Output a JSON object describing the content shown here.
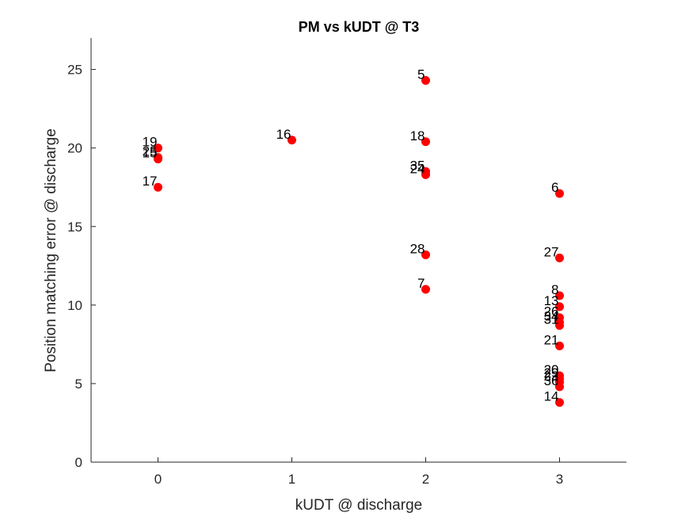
{
  "chart_data": {
    "type": "scatter",
    "title": "PM vs kUDT @ T3",
    "xlabel": "kUDT @ discharge",
    "ylabel": "Position matching error @ discharge",
    "xlim": [
      -0.5,
      3.5
    ],
    "ylim": [
      0,
      27
    ],
    "xticks": [
      0,
      1,
      2,
      3
    ],
    "yticks": [
      0,
      5,
      10,
      15,
      20,
      25
    ],
    "grid": false,
    "marker_color": "#ff0000",
    "points": [
      {
        "label": "19",
        "x": 0,
        "y": 20.0
      },
      {
        "label": "25",
        "x": 0,
        "y": 19.4
      },
      {
        "label": "15",
        "x": 0,
        "y": 19.3
      },
      {
        "label": "17",
        "x": 0,
        "y": 17.5
      },
      {
        "label": "16",
        "x": 1,
        "y": 20.5
      },
      {
        "label": "5",
        "x": 2,
        "y": 24.3
      },
      {
        "label": "18",
        "x": 2,
        "y": 20.4
      },
      {
        "label": "35",
        "x": 2,
        "y": 18.5
      },
      {
        "label": "24",
        "x": 2,
        "y": 18.3
      },
      {
        "label": "28",
        "x": 2,
        "y": 13.2
      },
      {
        "label": "7",
        "x": 2,
        "y": 11.0
      },
      {
        "label": "6",
        "x": 3,
        "y": 17.1
      },
      {
        "label": "27",
        "x": 3,
        "y": 13.0
      },
      {
        "label": "8",
        "x": 3,
        "y": 10.6
      },
      {
        "label": "13",
        "x": 3,
        "y": 9.9
      },
      {
        "label": "26",
        "x": 3,
        "y": 9.2
      },
      {
        "label": "34",
        "x": 3,
        "y": 8.9
      },
      {
        "label": "31",
        "x": 3,
        "y": 8.7
      },
      {
        "label": "21",
        "x": 3,
        "y": 7.4
      },
      {
        "label": "20",
        "x": 3,
        "y": 5.5
      },
      {
        "label": "29",
        "x": 3,
        "y": 5.3
      },
      {
        "label": "23",
        "x": 3,
        "y": 5.1
      },
      {
        "label": "36",
        "x": 3,
        "y": 4.8
      },
      {
        "label": "14",
        "x": 3,
        "y": 3.8
      }
    ]
  }
}
